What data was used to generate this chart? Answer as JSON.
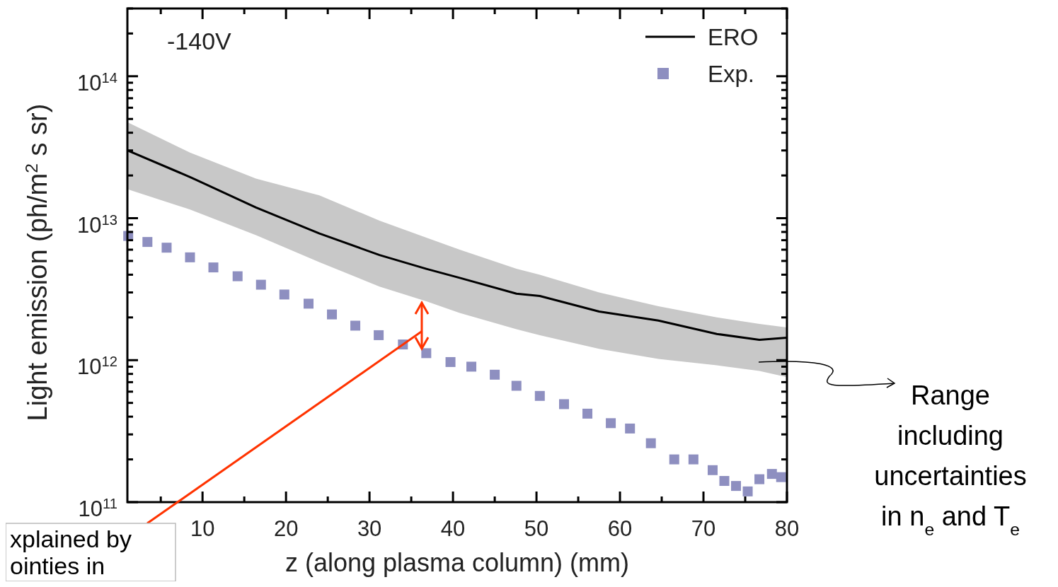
{
  "chart_data": {
    "type": "line",
    "xlabel": "z (along plasma column) (mm)",
    "ylabel": "Light emission (ph/m$^{2}$ s sr)",
    "xlim": [
      1,
      80
    ],
    "ylim": [
      100000000000.0,
      300000000000000.0
    ],
    "log": "y",
    "xticks": [
      {
        "value": 5,
        "label": null
      },
      10,
      {
        "value": 15,
        "label": null
      },
      20,
      {
        "value": 25,
        "label": null
      },
      30,
      {
        "value": 35,
        "label": null
      },
      40,
      {
        "value": 45,
        "label": null
      },
      50,
      {
        "value": 55,
        "label": null
      },
      60,
      {
        "value": 65,
        "label": null
      },
      70,
      {
        "value": 75,
        "label": null
      },
      80
    ],
    "yticks": [
      {
        "value": 100000000000.0,
        "label": "10$^{11}$"
      },
      {
        "value": 1000000000000.0,
        "label": "10$^{12}$"
      },
      {
        "value": 10000000000000.0,
        "label": "10$^{13}$"
      },
      {
        "value": 100000000000000.0,
        "label": "10$^{14}$"
      }
    ],
    "grid": false,
    "legend": "top right",
    "series": [
      {
        "name": "ERO",
        "color": "#000000",
        "line_style": "solid",
        "marker": "none",
        "x": [
          1,
          8.5,
          16.4,
          24,
          31.2,
          36.8,
          40.8,
          47.6,
          50.4,
          57.5,
          64.6,
          71.6,
          76.7,
          80
        ],
        "values": [
          30000000000000.0,
          19500000000000.0,
          11900000000000.0,
          7800000000000.0,
          5500000000000.0,
          4400000000000.0,
          3800000000000.0,
          2940000000000.0,
          2830000000000.0,
          2200000000000.0,
          1900000000000.0,
          1530000000000.0,
          1390000000000.0,
          1440000000000.0
        ],
        "lower": [
          16000000000000.0,
          11500000000000.0,
          7600000000000.0,
          4900000000000.0,
          3300000000000.0,
          2600000000000.0,
          2150000000000.0,
          1650000000000.0,
          1500000000000.0,
          1200000000000.0,
          1020000000000.0,
          920000000000.0,
          840000000000.0,
          760000000000.0
        ],
        "upper": [
          47500000000000.0,
          29000000000000.0,
          19000000000000.0,
          14500000000000.0,
          9600000000000.0,
          7300000000000.0,
          6000000000000.0,
          4400000000000.0,
          4000000000000.0,
          3000000000000.0,
          2400000000000.0,
          2000000000000.0,
          1800000000000.0,
          1700000000000.0
        ]
      },
      {
        "name": "Exp.",
        "type": "scatter",
        "color": "#8e8fc0",
        "marker": "square",
        "x": [
          1.1,
          3.4,
          5.7,
          8.5,
          11.3,
          14.2,
          17,
          19.8,
          22.7,
          25.5,
          28.3,
          31.1,
          34,
          36.8,
          39.7,
          42.2,
          45,
          47.6,
          50.4,
          53.3,
          56.1,
          58.9,
          61.2,
          63.7,
          66.5,
          68.8,
          71.1,
          72.5,
          73.9,
          75.3,
          76.7,
          78.2,
          79.3
        ],
        "values": [
          7500000000000.0,
          6800000000000.0,
          6200000000000.0,
          5300000000000.0,
          4500000000000.0,
          3900000000000.0,
          3400000000000.0,
          2900000000000.0,
          2500000000000.0,
          2100000000000.0,
          1750000000000.0,
          1500000000000.0,
          1290000000000.0,
          1120000000000.0,
          970000000000.0,
          900000000000.0,
          790000000000.0,
          660000000000.0,
          560000000000.0,
          490000000000.0,
          420000000000.0,
          360000000000.0,
          330000000000.0,
          260000000000.0,
          200000000000.0,
          200000000000.0,
          168000000000.0,
          141000000000.0,
          130000000000.0,
          119000000000.0,
          145000000000.0,
          158000000000.0,
          150000000000.0
        ]
      }
    ],
    "annotations": [
      "-140V",
      "Range including uncertainties in n$_{e}$ and T$_{e}$",
      "xplained by ointies in"
    ]
  }
}
